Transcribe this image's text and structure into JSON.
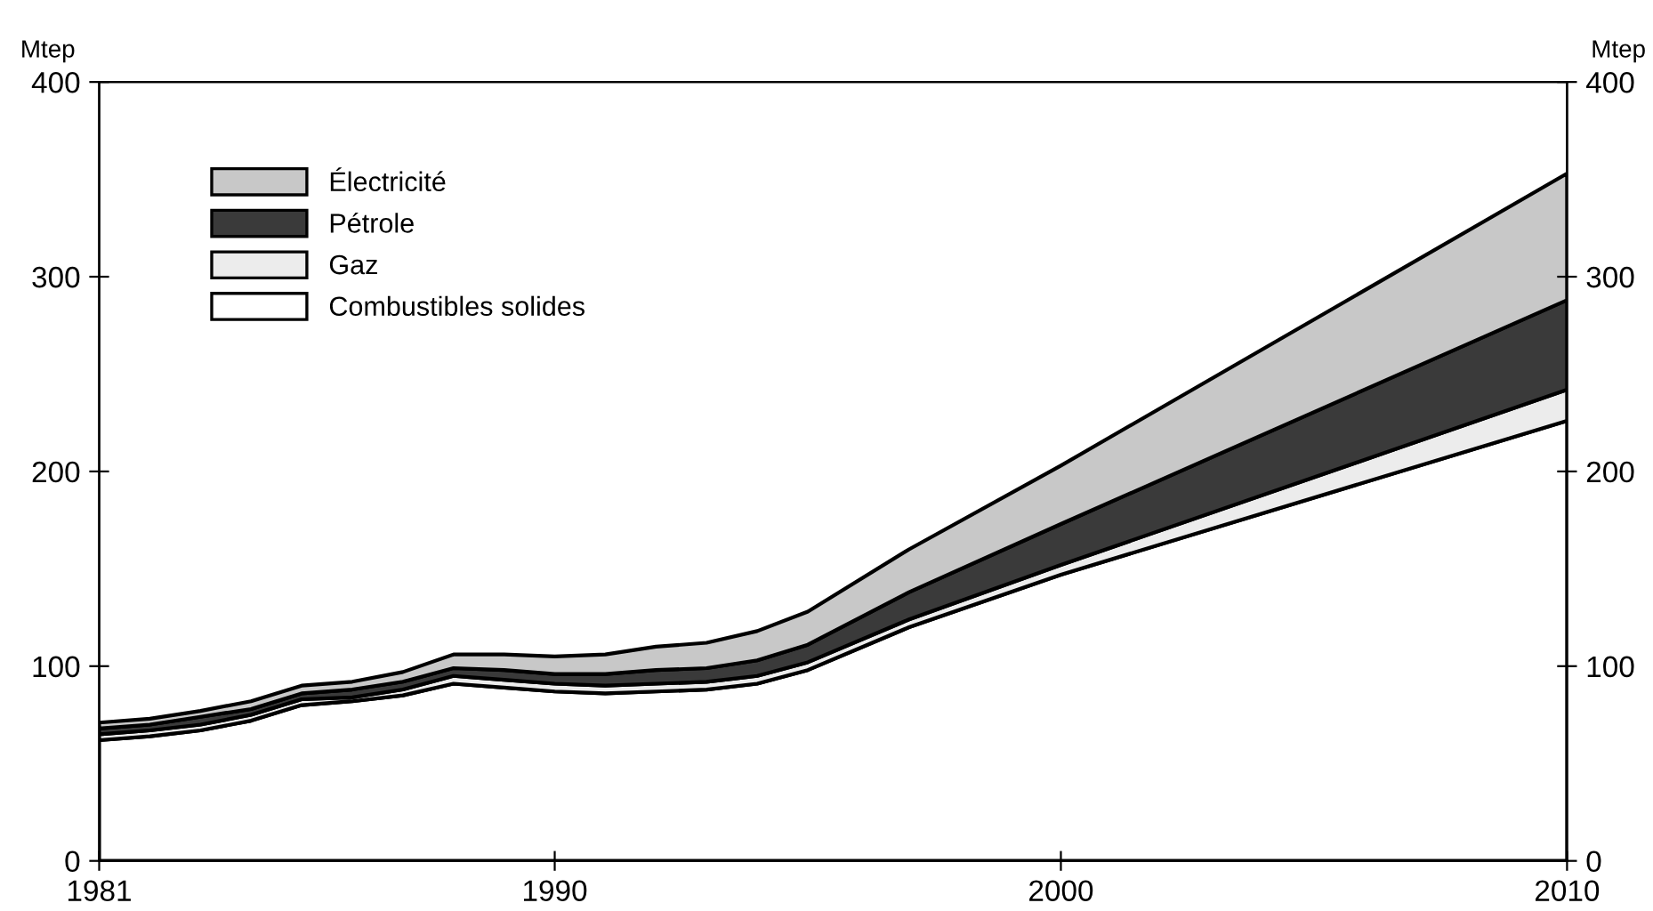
{
  "chart_data": {
    "type": "area",
    "stacked": true,
    "x": [
      1981,
      1982,
      1983,
      1984,
      1985,
      1986,
      1987,
      1988,
      1989,
      1990,
      1991,
      1992,
      1993,
      1994,
      1995,
      1997,
      2000,
      2010
    ],
    "series": [
      {
        "name": "Combustibles solides",
        "color": "#ffffff",
        "values": [
          62,
          64,
          67,
          72,
          80,
          82,
          85,
          91,
          89,
          87,
          86,
          87,
          88,
          91,
          98,
          120,
          147,
          226
        ]
      },
      {
        "name": "Gaz",
        "color": "#ececec",
        "values": [
          3,
          3,
          3,
          3,
          3,
          2,
          3,
          4,
          4,
          4,
          4,
          4,
          4,
          4,
          4,
          4,
          5,
          16
        ]
      },
      {
        "name": "Pétrole",
        "color": "#3a3a3a",
        "values": [
          3,
          3,
          4,
          3,
          3,
          4,
          4,
          4,
          5,
          5,
          6,
          7,
          7,
          8,
          9,
          14,
          21,
          46
        ]
      },
      {
        "name": "Électricité",
        "color": "#c8c8c8",
        "values": [
          3,
          3,
          3,
          4,
          4,
          4,
          5,
          7,
          8,
          9,
          10,
          12,
          13,
          15,
          17,
          22,
          30,
          65
        ]
      }
    ],
    "xlim": [
      1981,
      2010
    ],
    "xticks": [
      1981,
      1990,
      2000,
      2010
    ],
    "ylim": [
      0,
      400
    ],
    "yticks": [
      0,
      100,
      200,
      300,
      400
    ],
    "y2lim": [
      0,
      400
    ],
    "y2ticks": [
      0,
      100,
      200,
      300,
      400
    ],
    "ylabel": "Mtep",
    "y2label": "Mtep",
    "legend": "top left",
    "grid": false
  }
}
